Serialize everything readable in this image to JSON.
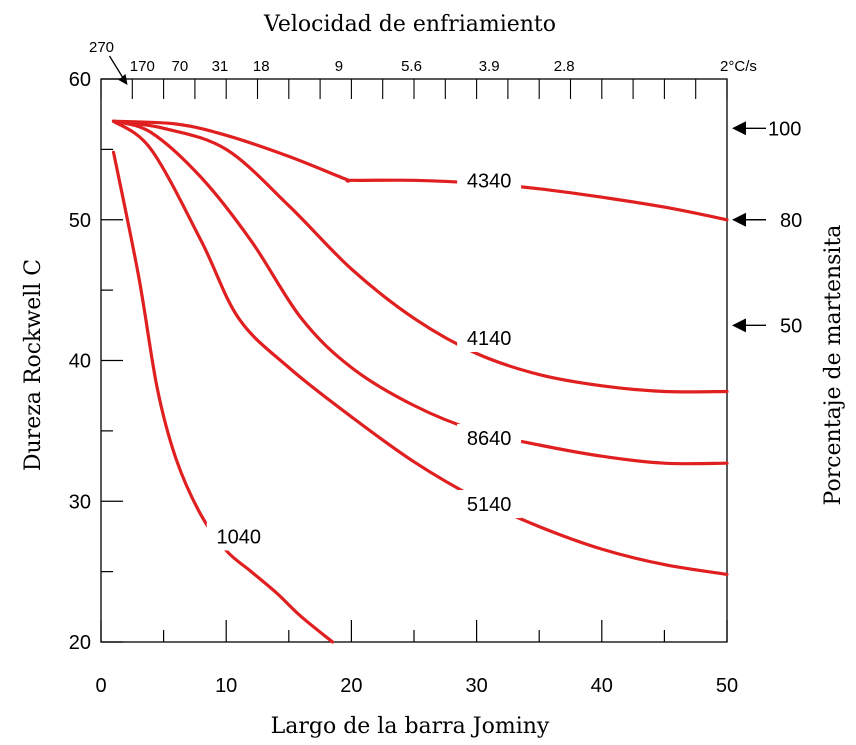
{
  "chart_data": {
    "type": "line",
    "title": "",
    "xlabel": "Largo de la barra Jominy",
    "ylabel": "Dureza Rockwell C",
    "top_axis_title": "Velocidad de enfriamiento",
    "right_axis_title": "Porcentaje de martensita",
    "xlim": [
      0,
      50
    ],
    "ylim": [
      20,
      60
    ],
    "x_ticks": [
      "0",
      "10",
      "20",
      "30",
      "40",
      "50"
    ],
    "y_ticks": [
      "20",
      "30",
      "40",
      "50",
      "60"
    ],
    "top_ticks": [
      {
        "label": "270",
        "x": 1
      },
      {
        "label": "170",
        "x": 3.3
      },
      {
        "label": "70",
        "x": 6.3
      },
      {
        "label": "31",
        "x": 9.5
      },
      {
        "label": "18",
        "x": 12.8
      },
      {
        "label": "9",
        "x": 19
      },
      {
        "label": "5.6",
        "x": 24.8
      },
      {
        "label": "3.9",
        "x": 31
      },
      {
        "label": "2.8",
        "x": 37
      },
      {
        "label": "2°C/s",
        "x": 49
      }
    ],
    "martensite_marks": [
      {
        "label": "100",
        "y": 56.5
      },
      {
        "label": "80",
        "y": 50.0
      },
      {
        "label": "50",
        "y": 42.5
      }
    ],
    "grid": false,
    "series": [
      {
        "name": "4340",
        "color": "#e02020",
        "label_at": [
          31,
          52.8
        ],
        "x": [
          1,
          6,
          10,
          15,
          19.5,
          20,
          25,
          30,
          35,
          40,
          45,
          50
        ],
        "y": [
          57,
          56.8,
          56,
          54.5,
          52.9,
          52.8,
          52.8,
          52.6,
          52.2,
          51.6,
          50.9,
          50.0
        ]
      },
      {
        "name": "4140",
        "color": "#e02020",
        "label_at": [
          31,
          41.6
        ],
        "x": [
          1,
          5,
          10,
          15,
          20,
          25,
          30,
          35,
          40,
          45,
          50
        ],
        "y": [
          57,
          56.5,
          55,
          51,
          46.5,
          43,
          40.5,
          39,
          38.2,
          37.8,
          37.8
        ]
      },
      {
        "name": "8640",
        "color": "#e02020",
        "label_at": [
          31,
          34.5
        ],
        "x": [
          1,
          4,
          8,
          12,
          16,
          20,
          25,
          30,
          35,
          40,
          45,
          50
        ],
        "y": [
          57,
          56.2,
          53,
          48.5,
          43,
          39.5,
          36.8,
          35,
          34,
          33.2,
          32.7,
          32.7
        ]
      },
      {
        "name": "5140",
        "color": "#e02020",
        "label_at": [
          31,
          29.8
        ],
        "x": [
          1,
          4,
          8,
          11,
          15,
          20,
          25,
          30,
          35,
          40,
          45,
          50
        ],
        "y": [
          57,
          55,
          48.5,
          43,
          39.5,
          36,
          32.8,
          30.2,
          28.2,
          26.6,
          25.5,
          24.8
        ]
      },
      {
        "name": "1040",
        "color": "#e02020",
        "label_at": [
          11,
          27.5
        ],
        "x": [
          1,
          3,
          4.5,
          6,
          8,
          10,
          12,
          14,
          16,
          18.5
        ],
        "y": [
          54.8,
          46,
          38,
          33,
          29,
          26.5,
          25,
          23.5,
          21.8,
          20
        ]
      }
    ]
  }
}
